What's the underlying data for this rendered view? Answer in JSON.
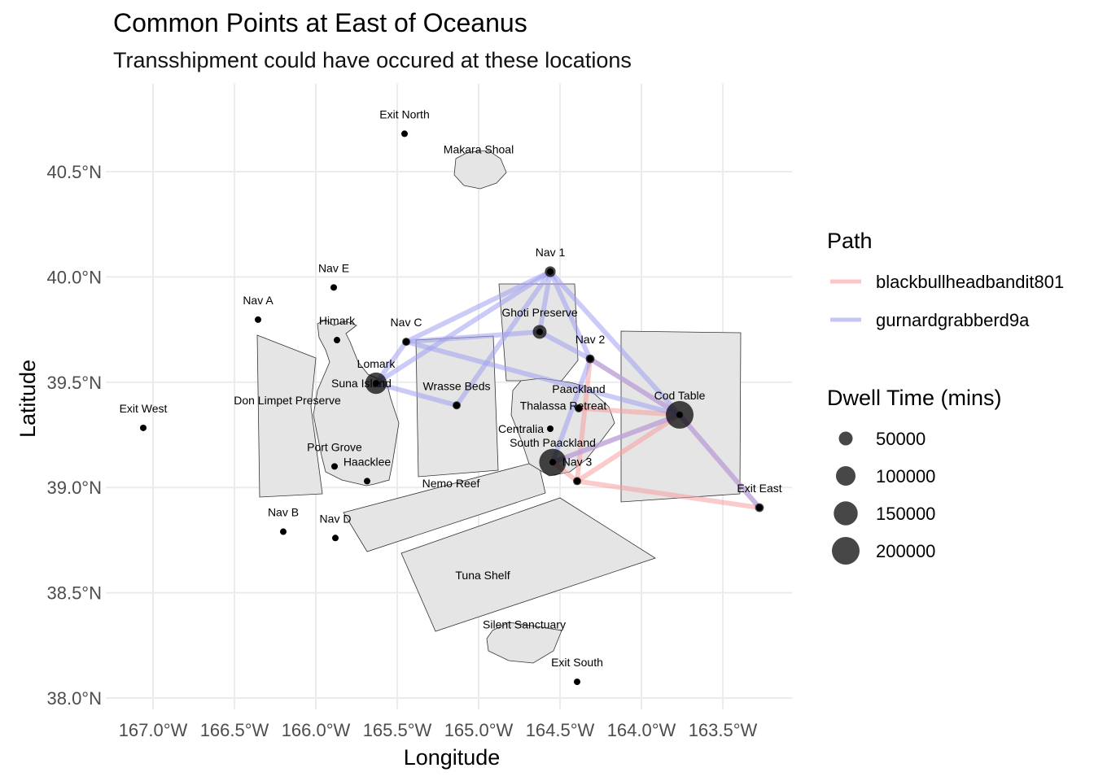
{
  "chart_data": {
    "type": "scatter",
    "title": "Common Points at East of Oceanus",
    "subtitle": "Transshipment could have occured at these locations",
    "xlabel": "Longitude",
    "ylabel": "Latitude",
    "xlim": [
      -167.2,
      -163.08
    ],
    "ylim": [
      37.95,
      40.92
    ],
    "x_ticks": [
      -167,
      -166.5,
      -166,
      -165.5,
      -165,
      -164.5,
      -164,
      -163.5
    ],
    "x_tick_labels": [
      "167.0°W",
      "166.5°W",
      "166.0°W",
      "165.5°W",
      "165.0°W",
      "164.5°W",
      "164.0°W",
      "163.5°W"
    ],
    "y_ticks": [
      38,
      38.5,
      39,
      39.5,
      40,
      40.5
    ],
    "y_tick_labels": [
      "38.0°N",
      "38.5°N",
      "39.0°N",
      "39.5°N",
      "40.0°N",
      "40.5°N"
    ],
    "grid": true,
    "locations": [
      {
        "name": "Exit North",
        "lon": -165.455,
        "lat": 40.68,
        "dwell": 0
      },
      {
        "name": "Nav 1",
        "lon": -164.56,
        "lat": 40.025,
        "dwell": 30000
      },
      {
        "name": "Nav E",
        "lon": -165.89,
        "lat": 39.95,
        "dwell": 0
      },
      {
        "name": "Nav A",
        "lon": -166.355,
        "lat": 39.797,
        "dwell": 0
      },
      {
        "name": "Himark",
        "lon": -165.87,
        "lat": 39.7,
        "dwell": 0
      },
      {
        "name": "Nav C",
        "lon": -165.445,
        "lat": 39.692,
        "dwell": 15000
      },
      {
        "name": "Ghoti Preserve",
        "lon": -164.625,
        "lat": 39.739,
        "dwell": 50000
      },
      {
        "name": "Nav 2",
        "lon": -164.315,
        "lat": 39.611,
        "dwell": 20000
      },
      {
        "name": "Lomark",
        "lon": -165.63,
        "lat": 39.495,
        "dwell": 120000
      },
      {
        "name": "Wrasse Beds",
        "lon": -165.135,
        "lat": 39.39,
        "dwell": 5000
      },
      {
        "name": "Paackland",
        "lon": -164.385,
        "lat": 39.376,
        "dwell": 12000
      },
      {
        "name": "Cod Table",
        "lon": -163.765,
        "lat": 39.345,
        "dwell": 200000
      },
      {
        "name": "Exit West",
        "lon": -167.06,
        "lat": 39.283,
        "dwell": 0
      },
      {
        "name": "Centralia",
        "lon": -164.56,
        "lat": 39.279,
        "dwell": 0
      },
      {
        "name": "South Paackland",
        "lon": -164.545,
        "lat": 39.12,
        "dwell": 190000
      },
      {
        "name": "Nav 3",
        "lon": -164.395,
        "lat": 39.03,
        "dwell": 12000
      },
      {
        "name": "Port Grove",
        "lon": -165.885,
        "lat": 39.1,
        "dwell": 0
      },
      {
        "name": "Haacklee",
        "lon": -165.685,
        "lat": 39.03,
        "dwell": 0
      },
      {
        "name": "Exit East",
        "lon": -163.275,
        "lat": 38.904,
        "dwell": 20000
      },
      {
        "name": "Nav B",
        "lon": -166.2,
        "lat": 38.79,
        "dwell": 0
      },
      {
        "name": "Nav D",
        "lon": -165.88,
        "lat": 38.76,
        "dwell": 0
      },
      {
        "name": "Exit South",
        "lon": -164.395,
        "lat": 38.077,
        "dwell": 0
      }
    ],
    "region_labels": [
      {
        "name": "Makara Shoal",
        "lon": -165.0,
        "lat": 40.607
      },
      {
        "name": "Don Limpet Preserve",
        "lon": -166.175,
        "lat": 39.449
      },
      {
        "name": "Suna Island",
        "lon": -165.72,
        "lat": 39.495
      },
      {
        "name": "Thalassa Retreat",
        "lon": -164.48,
        "lat": 39.39
      },
      {
        "name": "Nemo Reef",
        "lon": -165.17,
        "lat": 39.02
      },
      {
        "name": "Tuna Shelf",
        "lon": -164.975,
        "lat": 38.583
      },
      {
        "name": "Silent Sanctuary",
        "lon": -164.72,
        "lat": 38.35
      }
    ],
    "paths": [
      {
        "name": "blackbullheadbandit801",
        "color": "#f8a0a0",
        "edges": [
          [
            "Nav 2",
            "Nav 3"
          ],
          [
            "Nav 3",
            "Exit East"
          ],
          [
            "Nav 2",
            "Cod Table"
          ],
          [
            "Paackland",
            "Cod Table"
          ],
          [
            "South Paackland",
            "Cod Table"
          ],
          [
            "Nav 3",
            "Cod Table"
          ],
          [
            "Cod Table",
            "Exit East"
          ],
          [
            "South Paackland",
            "Nav 3"
          ]
        ]
      },
      {
        "name": "gurnardgrabberd9a",
        "color": "#a0a0f0",
        "edges": [
          [
            "Nav 1",
            "Nav C"
          ],
          [
            "Nav 1",
            "Lomark"
          ],
          [
            "Nav 1",
            "Ghoti Preserve"
          ],
          [
            "Nav 1",
            "Nav 2"
          ],
          [
            "Nav 1",
            "Wrasse Beds"
          ],
          [
            "Nav 1",
            "Cod Table"
          ],
          [
            "Nav C",
            "Ghoti Preserve"
          ],
          [
            "Nav C",
            "Lomark"
          ],
          [
            "Nav C",
            "Cod Table"
          ],
          [
            "Lomark",
            "Wrasse Beds"
          ],
          [
            "Ghoti Preserve",
            "Nav 2"
          ],
          [
            "Nav 2",
            "South Paackland"
          ],
          [
            "Nav 2",
            "Cod Table"
          ],
          [
            "Cod Table",
            "Exit East"
          ],
          [
            "Cod Table",
            "South Paackland"
          ]
        ]
      }
    ],
    "legend_path_title": "Path",
    "legend_size_title": "Dwell Time (mins)",
    "legend_size_values": [
      50000,
      100000,
      150000,
      200000
    ],
    "legend_size_labels": [
      "50000",
      "100000",
      "150000",
      "200000"
    ],
    "legend_placement": "right"
  }
}
